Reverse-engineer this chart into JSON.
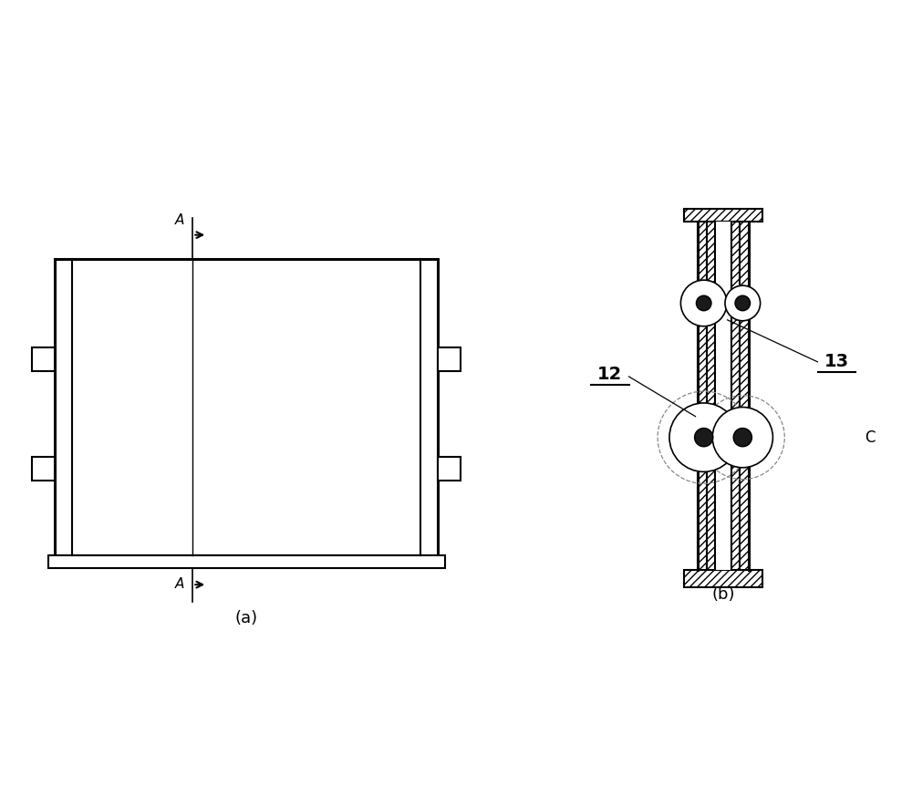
{
  "bg_color": "#ffffff",
  "line_color": "#000000",
  "label_a": "A",
  "label_b_caption": "(b)",
  "label_a_caption": "(a)",
  "label_12": "12",
  "label_13": "13",
  "label_C": "C"
}
